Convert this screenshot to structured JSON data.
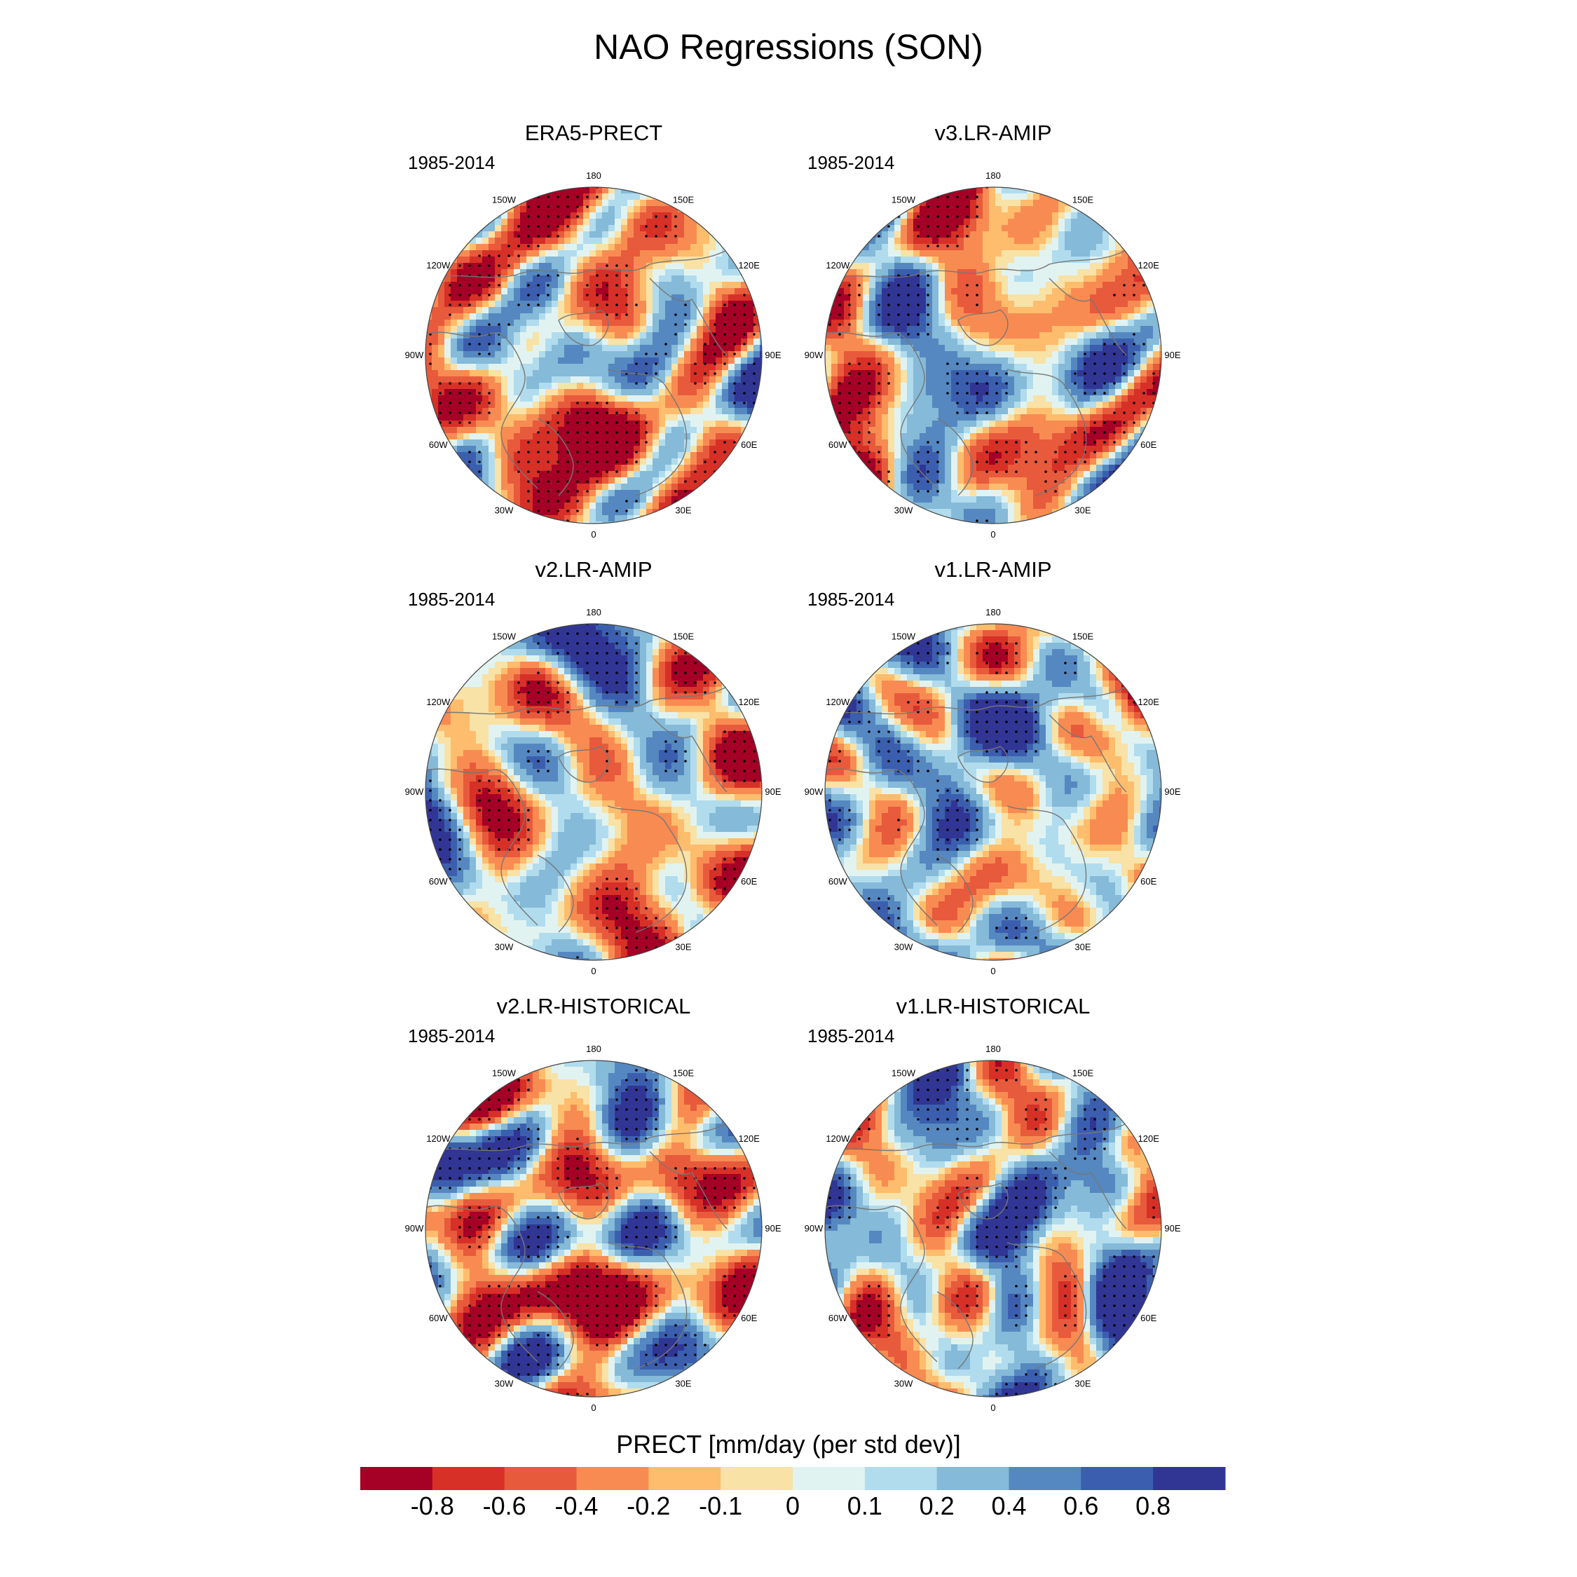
{
  "title": "NAO Regressions (SON)",
  "colorbar": {
    "title": "PRECT [mm/day (per std dev)]",
    "labels": [
      "-0.8",
      "-0.6",
      "-0.4",
      "-0.2",
      "-0.1",
      "0",
      "0.1",
      "0.2",
      "0.4",
      "0.6",
      "0.8"
    ],
    "colors": [
      "#a50026",
      "#d73027",
      "#e85a3c",
      "#f88b52",
      "#fdbd6c",
      "#f8e2a6",
      "#e1f3f1",
      "#b1dcee",
      "#85bad8",
      "#5588c0",
      "#3b5fae",
      "#313695"
    ]
  },
  "longitude_labels": [
    "180",
    "150E",
    "120E",
    "90E",
    "60E",
    "30E",
    "0",
    "30W",
    "60W",
    "90W",
    "120W",
    "150W"
  ],
  "panels": [
    {
      "title": "ERA5-PRECT",
      "period": "1985-2014"
    },
    {
      "title": "v3.LR-AMIP",
      "period": "1985-2014"
    },
    {
      "title": "v2.LR-AMIP",
      "period": "1985-2014"
    },
    {
      "title": "v1.LR-AMIP",
      "period": "1985-2014"
    },
    {
      "title": "v2.LR-HISTORICAL",
      "period": "1985-2014"
    },
    {
      "title": "v1.LR-HISTORICAL",
      "period": "1985-2014"
    }
  ]
}
